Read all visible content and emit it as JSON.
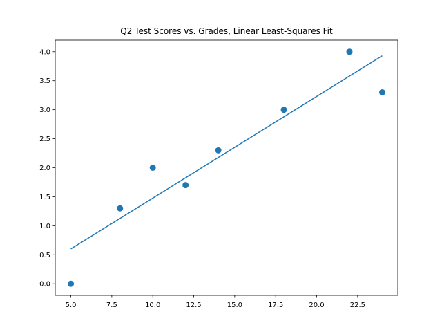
{
  "chart_data": {
    "type": "scatter",
    "title": "Q2 Test Scores vs. Grades, Linear Least-Squares Fit",
    "xlabel": "",
    "ylabel": "",
    "xlim": [
      4.05,
      24.95
    ],
    "ylim": [
      -0.2,
      4.2
    ],
    "x_ticks": [
      5.0,
      7.5,
      10.0,
      12.5,
      15.0,
      17.5,
      20.0,
      22.5
    ],
    "x_tick_labels": [
      "5.0",
      "7.5",
      "10.0",
      "12.5",
      "15.0",
      "17.5",
      "20.0",
      "22.5"
    ],
    "y_ticks": [
      0.0,
      0.5,
      1.0,
      1.5,
      2.0,
      2.5,
      3.0,
      3.5,
      4.0
    ],
    "y_tick_labels": [
      "0.0",
      "0.5",
      "1.0",
      "1.5",
      "2.0",
      "2.5",
      "3.0",
      "3.5",
      "4.0"
    ],
    "grid": false,
    "legend": "none",
    "series": [
      {
        "kind": "scatter",
        "color": "#1f77b4",
        "x": [
          5,
          8,
          10,
          12,
          14,
          18,
          22,
          24
        ],
        "y": [
          0.0,
          1.3,
          2.0,
          1.7,
          2.3,
          3.0,
          4.0,
          3.3
        ]
      },
      {
        "kind": "line",
        "color": "#1f77b4",
        "x": [
          5,
          24
        ],
        "y": [
          0.6,
          3.93
        ]
      }
    ]
  }
}
